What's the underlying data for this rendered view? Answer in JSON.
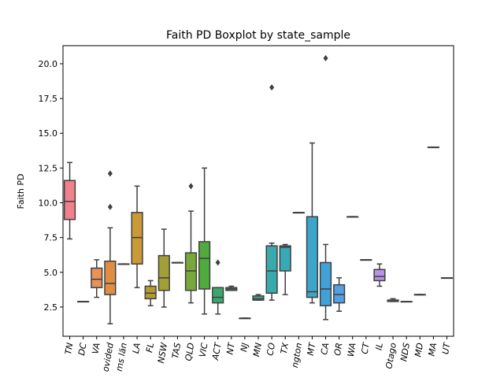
{
  "chart_data": {
    "type": "box",
    "title": "Faith PD Boxplot by state_sample",
    "xlabel": "",
    "ylabel": "Faith PD",
    "ylim": [
      0.4,
      21.3
    ],
    "yticks": [
      "2.5",
      "5.0",
      "7.5",
      "10.0",
      "12.5",
      "15.0",
      "17.5",
      "20.0"
    ],
    "grid": false,
    "categories": [
      {
        "label": "TN",
        "color": "#f0808c",
        "min": 7.4,
        "q1": 8.8,
        "median": 10.1,
        "q3": 11.6,
        "max": 12.9,
        "outliers": []
      },
      {
        "label": "DC",
        "color": "#ef8a4f",
        "min": 2.9,
        "q1": 2.9,
        "median": 2.9,
        "q3": 2.9,
        "max": 2.9,
        "outliers": []
      },
      {
        "label": "VA",
        "color": "#e8925a",
        "min": 3.2,
        "q1": 3.9,
        "median": 4.5,
        "q3": 5.3,
        "max": 5.9,
        "outliers": []
      },
      {
        "label": "ovided",
        "color": "#df8f44",
        "min": 1.3,
        "q1": 3.4,
        "median": 4.2,
        "q3": 5.8,
        "max": 8.2,
        "outliers": [
          9.7,
          12.1
        ]
      },
      {
        "label": "ms län",
        "color": "#d4913b",
        "min": 5.6,
        "q1": 5.6,
        "median": 5.6,
        "q3": 5.6,
        "max": 5.6,
        "outliers": []
      },
      {
        "label": "LA",
        "color": "#c99a35",
        "min": 3.9,
        "q1": 5.6,
        "median": 7.5,
        "q3": 9.3,
        "max": 11.2,
        "outliers": []
      },
      {
        "label": "FL",
        "color": "#b59a34",
        "min": 2.6,
        "q1": 3.1,
        "median": 3.5,
        "q3": 4.0,
        "max": 4.4,
        "outliers": []
      },
      {
        "label": "NSW",
        "color": "#a19f35",
        "min": 2.5,
        "q1": 3.7,
        "median": 4.6,
        "q3": 6.2,
        "max": 8.1,
        "outliers": []
      },
      {
        "label": "TAS",
        "color": "#8fa337",
        "min": 5.7,
        "q1": 5.7,
        "median": 5.7,
        "q3": 5.7,
        "max": 5.7,
        "outliers": []
      },
      {
        "label": "QLD",
        "color": "#79a83a",
        "min": 2.8,
        "q1": 3.7,
        "median": 5.1,
        "q3": 6.4,
        "max": 9.4,
        "outliers": [
          11.2
        ]
      },
      {
        "label": "VIC",
        "color": "#4fab3d",
        "min": 2.0,
        "q1": 3.8,
        "median": 6.0,
        "q3": 7.2,
        "max": 12.5,
        "outliers": []
      },
      {
        "label": "ACT",
        "color": "#3aa86e",
        "min": 2.0,
        "q1": 2.8,
        "median": 3.2,
        "q3": 3.9,
        "max": 3.9,
        "outliers": [
          5.7
        ]
      },
      {
        "label": "NT",
        "color": "#38a98c",
        "min": 3.7,
        "q1": 3.7,
        "median": 3.8,
        "q3": 3.9,
        "max": 4.0,
        "outliers": []
      },
      {
        "label": "NJ",
        "color": "#36aa98",
        "min": 1.7,
        "q1": 1.7,
        "median": 1.7,
        "q3": 1.7,
        "max": 1.7,
        "outliers": []
      },
      {
        "label": "MN",
        "color": "#37ab9f",
        "min": 3.0,
        "q1": 3.0,
        "median": 3.1,
        "q3": 3.3,
        "max": 3.4,
        "outliers": []
      },
      {
        "label": "CO",
        "color": "#38aaab",
        "min": 3.0,
        "q1": 3.5,
        "median": 5.1,
        "q3": 6.9,
        "max": 7.1,
        "outliers": [
          18.3
        ]
      },
      {
        "label": "TX",
        "color": "#39a9b5",
        "min": 3.4,
        "q1": 5.1,
        "median": 6.8,
        "q3": 6.9,
        "max": 7.0,
        "outliers": []
      },
      {
        "label": "ngton",
        "color": "#3aa8bd",
        "min": 9.3,
        "q1": 9.3,
        "median": 9.3,
        "q3": 9.3,
        "max": 9.3,
        "outliers": []
      },
      {
        "label": "MT",
        "color": "#3ca5c9",
        "min": 2.8,
        "q1": 3.2,
        "median": 3.6,
        "q3": 9.0,
        "max": 14.3,
        "outliers": []
      },
      {
        "label": "CA",
        "color": "#41a0d5",
        "min": 1.6,
        "q1": 2.6,
        "median": 3.8,
        "q3": 5.7,
        "max": 7.0,
        "outliers": [
          20.4
        ]
      },
      {
        "label": "OR",
        "color": "#569fe0",
        "min": 2.2,
        "q1": 2.8,
        "median": 3.4,
        "q3": 4.1,
        "max": 4.6,
        "outliers": []
      },
      {
        "label": "WA",
        "color": "#7da2e6",
        "min": 9.0,
        "q1": 9.0,
        "median": 9.0,
        "q3": 9.0,
        "max": 9.0,
        "outliers": []
      },
      {
        "label": "CT",
        "color": "#9f9ee8",
        "min": 5.9,
        "q1": 5.9,
        "median": 5.9,
        "q3": 5.9,
        "max": 5.9,
        "outliers": []
      },
      {
        "label": "IL",
        "color": "#b793e6",
        "min": 4.0,
        "q1": 4.4,
        "median": 4.7,
        "q3": 5.2,
        "max": 5.6,
        "outliers": []
      },
      {
        "label": "Otago",
        "color": "#cb8fe0",
        "min": 2.9,
        "q1": 2.9,
        "median": 3.0,
        "q3": 3.0,
        "max": 3.1,
        "outliers": []
      },
      {
        "label": "NDS",
        "color": "#db8ad8",
        "min": 2.9,
        "q1": 2.9,
        "median": 2.9,
        "q3": 2.9,
        "max": 2.9,
        "outliers": []
      },
      {
        "label": "MD",
        "color": "#e586cb",
        "min": 3.4,
        "q1": 3.4,
        "median": 3.4,
        "q3": 3.4,
        "max": 3.4,
        "outliers": []
      },
      {
        "label": "MA",
        "color": "#ea84ba",
        "min": 14.0,
        "q1": 14.0,
        "median": 14.0,
        "q3": 14.0,
        "max": 14.0,
        "outliers": []
      },
      {
        "label": "UT",
        "color": "#ee86a8",
        "min": 4.6,
        "q1": 4.6,
        "median": 4.6,
        "q3": 4.6,
        "max": 4.6,
        "outliers": []
      }
    ]
  }
}
